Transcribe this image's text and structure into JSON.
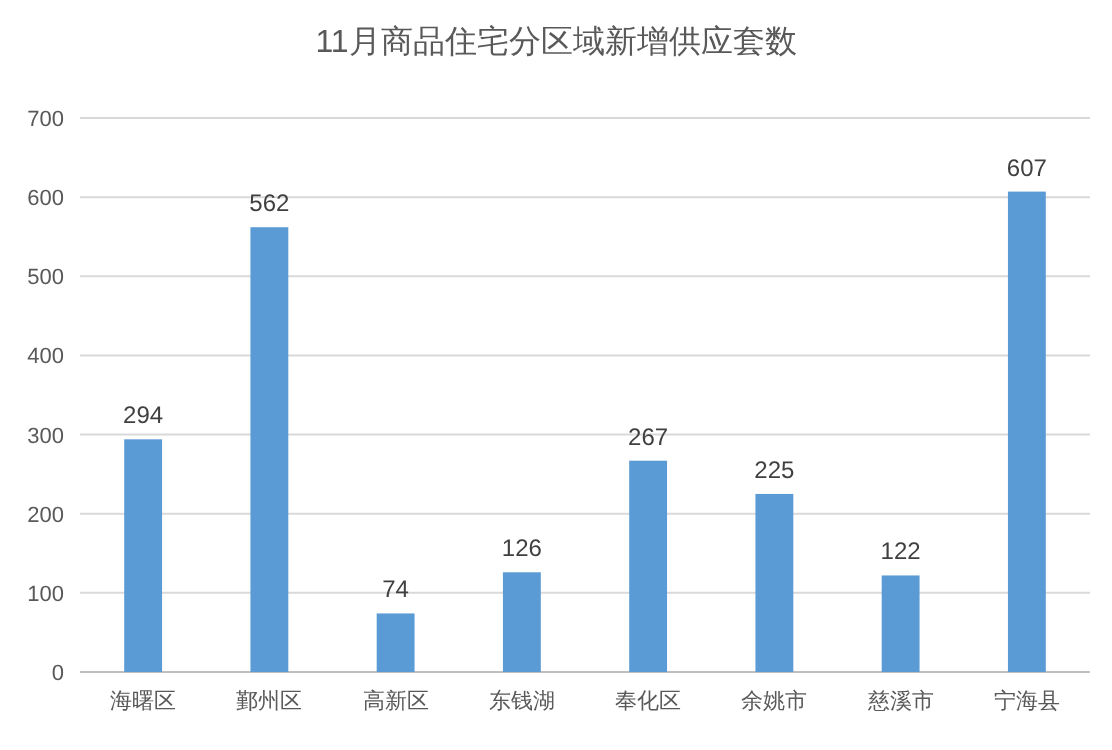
{
  "chart_data": {
    "type": "bar",
    "title": "11月商品住宅分区域新增供应套数",
    "categories": [
      "海曙区",
      "鄞州区",
      "高新区",
      "东钱湖",
      "奉化区",
      "余姚市",
      "慈溪市",
      "宁海县"
    ],
    "values": [
      294,
      562,
      74,
      126,
      267,
      225,
      122,
      607
    ],
    "color": "#5b9bd5",
    "ylim": [
      0,
      700
    ],
    "yticks": [
      0,
      100,
      200,
      300,
      400,
      500,
      600,
      700
    ],
    "grid": "y",
    "data_labels": true
  }
}
